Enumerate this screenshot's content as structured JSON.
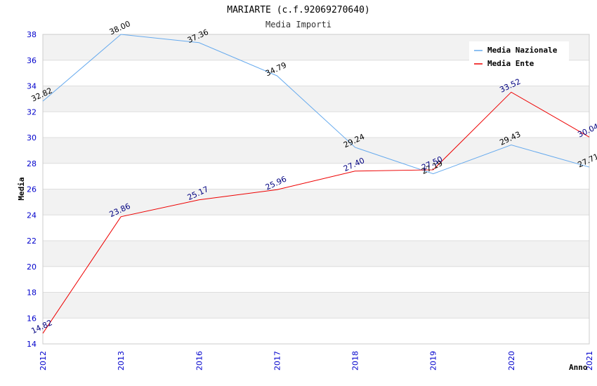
{
  "chart_data": {
    "type": "line",
    "title": "MARIARTE (c.f.92069270640)",
    "subtitle": "Media Importi",
    "xlabel": "Anno",
    "ylabel": "Media",
    "categories": [
      "2012",
      "2013",
      "2016",
      "2017",
      "2018",
      "2019",
      "2020",
      "2021"
    ],
    "yticks": [
      "14",
      "16",
      "18",
      "20",
      "22",
      "24",
      "26",
      "28",
      "30",
      "32",
      "34",
      "36",
      "38"
    ],
    "ylim": [
      14,
      38
    ],
    "grid": true,
    "legend_position": "top-right",
    "series": [
      {
        "name": "Media Nazionale",
        "color": "#66aaee",
        "values": [
          32.82,
          38.0,
          37.36,
          34.79,
          29.24,
          27.19,
          29.43,
          27.71
        ],
        "labels": [
          "32.82",
          "38.00",
          "37.36",
          "34.79",
          "29.24",
          "27.19",
          "29.43",
          "27.71"
        ]
      },
      {
        "name": "Media Ente",
        "color": "#ee0000",
        "values": [
          14.82,
          23.86,
          25.17,
          25.96,
          27.4,
          27.5,
          33.52,
          30.04
        ],
        "labels": [
          "14.82",
          "23.86",
          "25.17",
          "25.96",
          "27.40",
          "27.50",
          "33.52",
          "30.04"
        ]
      }
    ]
  }
}
